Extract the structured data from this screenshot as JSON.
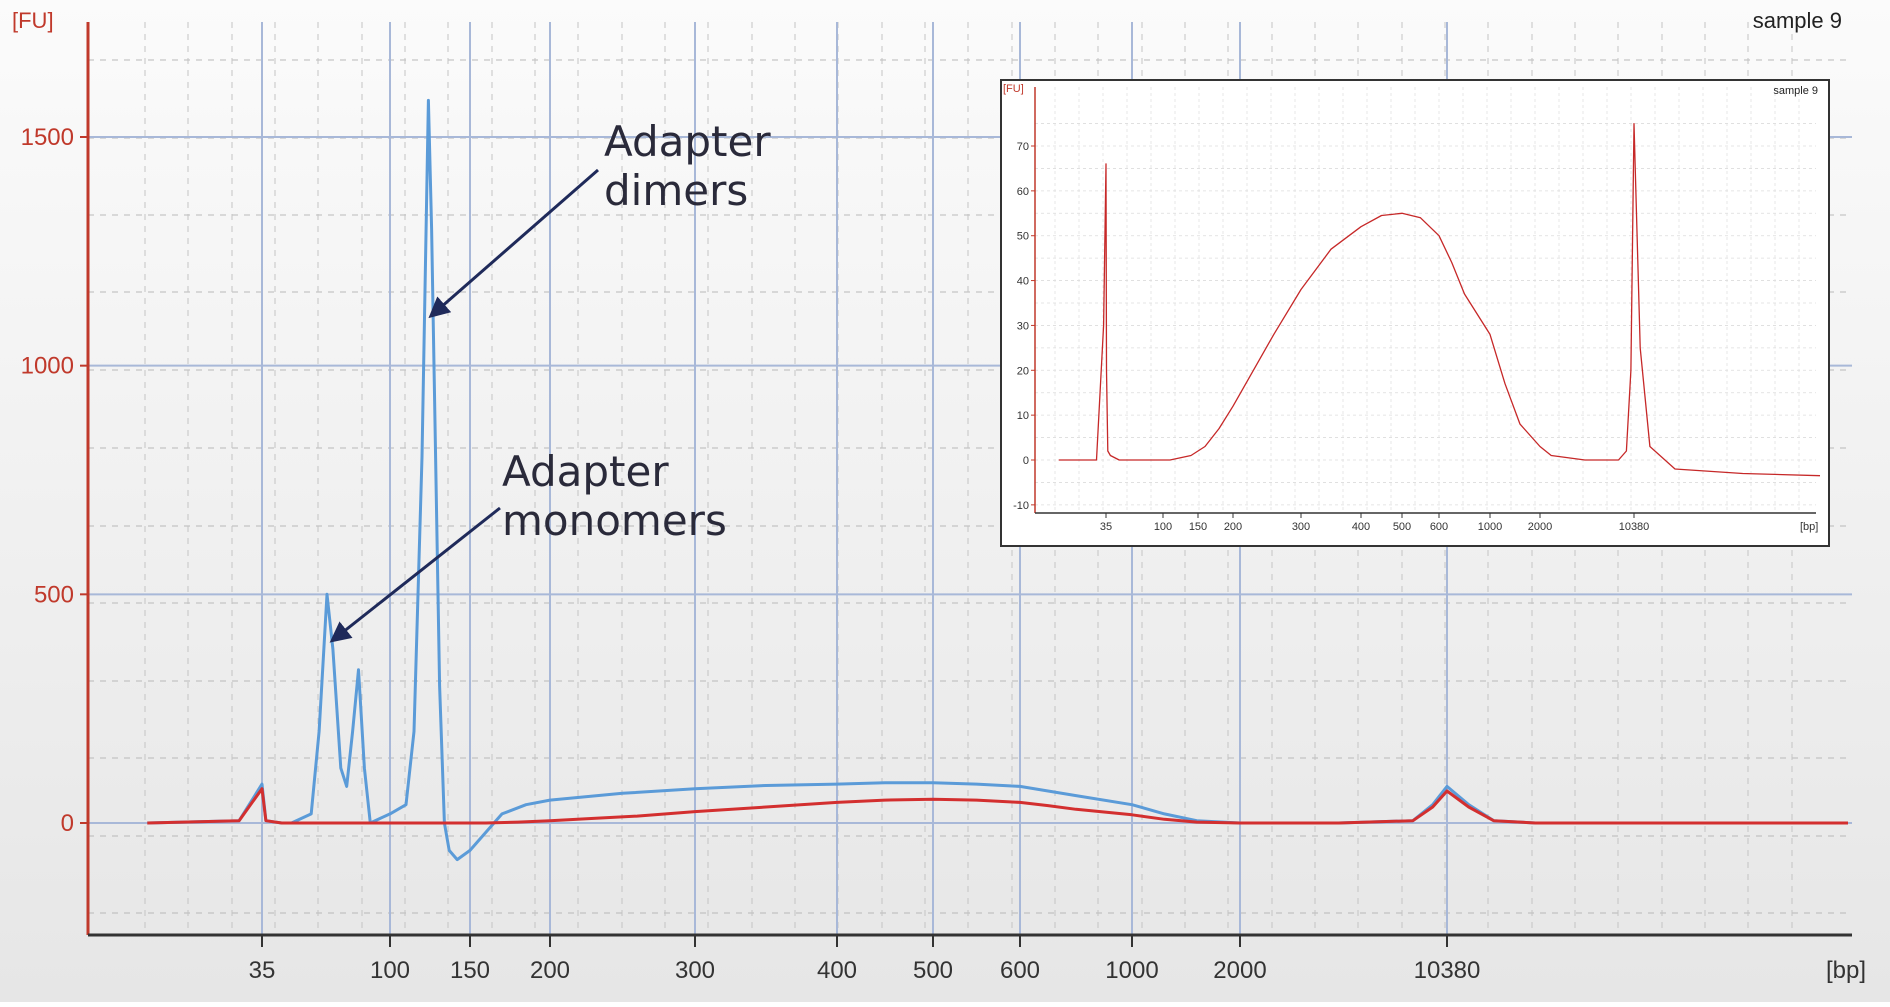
{
  "chart_data": [
    {
      "type": "line",
      "title": "",
      "sample_label": "sample 9",
      "xlabel": "[bp]",
      "ylabel": "[FU]",
      "ylim": [
        -260,
        1680
      ],
      "yticks": [
        0,
        500,
        1000,
        1500
      ],
      "x_tick_labels": [
        {
          "label": "35",
          "x": 35
        },
        {
          "label": "100",
          "x": 100
        },
        {
          "label": "150",
          "x": 150
        },
        {
          "label": "200",
          "x": 200
        },
        {
          "label": "300",
          "x": 300
        },
        {
          "label": "400",
          "x": 400
        },
        {
          "label": "500",
          "x": 500
        },
        {
          "label": "600",
          "x": 600
        },
        {
          "label": "1000",
          "x": 1000
        },
        {
          "label": "2000",
          "x": 2000
        },
        {
          "label": "10380",
          "x": 10380
        }
      ],
      "colors": {
        "blue_trace": "#5b9bd8",
        "red_trace": "#d32f2f",
        "axis_y": "#c0392b"
      },
      "series": [
        {
          "color": "#5b9bd8",
          "points": [
            [
              25,
              0
            ],
            [
              33,
              5
            ],
            [
              35,
              85
            ],
            [
              37,
              5
            ],
            [
              45,
              0
            ],
            [
              50,
              0
            ],
            [
              60,
              20
            ],
            [
              64,
              200
            ],
            [
              68,
              500
            ],
            [
              71,
              380
            ],
            [
              75,
              120
            ],
            [
              78,
              80
            ],
            [
              81,
              200
            ],
            [
              84,
              335
            ],
            [
              87,
              120
            ],
            [
              90,
              0
            ],
            [
              95,
              10
            ],
            [
              100,
              20
            ],
            [
              110,
              40
            ],
            [
              115,
              200
            ],
            [
              120,
              800
            ],
            [
              124,
              1580
            ],
            [
              126,
              1300
            ],
            [
              128,
              900
            ],
            [
              131,
              300
            ],
            [
              134,
              0
            ],
            [
              137,
              -60
            ],
            [
              142,
              -80
            ],
            [
              150,
              -60
            ],
            [
              160,
              -20
            ],
            [
              170,
              20
            ],
            [
              185,
              40
            ],
            [
              200,
              50
            ],
            [
              250,
              65
            ],
            [
              300,
              75
            ],
            [
              350,
              82
            ],
            [
              400,
              85
            ],
            [
              450,
              88
            ],
            [
              500,
              88
            ],
            [
              550,
              85
            ],
            [
              600,
              80
            ],
            [
              700,
              70
            ],
            [
              800,
              60
            ],
            [
              1000,
              40
            ],
            [
              1300,
              20
            ],
            [
              1600,
              5
            ],
            [
              2000,
              0
            ],
            [
              3000,
              0
            ],
            [
              6000,
              0
            ],
            [
              9000,
              5
            ],
            [
              9800,
              40
            ],
            [
              10380,
              80
            ],
            [
              10900,
              40
            ],
            [
              11500,
              5
            ],
            [
              12500,
              0
            ],
            [
              20000,
              0
            ]
          ]
        },
        {
          "color": "#d32f2f",
          "points": [
            [
              25,
              0
            ],
            [
              33,
              5
            ],
            [
              35,
              75
            ],
            [
              37,
              5
            ],
            [
              45,
              0
            ],
            [
              100,
              0
            ],
            [
              140,
              0
            ],
            [
              160,
              0
            ],
            [
              180,
              2
            ],
            [
              200,
              5
            ],
            [
              230,
              10
            ],
            [
              260,
              15
            ],
            [
              300,
              25
            ],
            [
              350,
              35
            ],
            [
              400,
              45
            ],
            [
              450,
              50
            ],
            [
              500,
              52
            ],
            [
              550,
              50
            ],
            [
              600,
              45
            ],
            [
              700,
              38
            ],
            [
              800,
              30
            ],
            [
              1000,
              18
            ],
            [
              1300,
              8
            ],
            [
              1600,
              2
            ],
            [
              2000,
              0
            ],
            [
              6000,
              0
            ],
            [
              9000,
              5
            ],
            [
              9800,
              35
            ],
            [
              10380,
              70
            ],
            [
              10900,
              35
            ],
            [
              11500,
              5
            ],
            [
              12500,
              0
            ],
            [
              20000,
              0
            ]
          ]
        }
      ],
      "annotations": [
        {
          "line1": "Adapter",
          "line2": "dimers",
          "target_x": 126,
          "target_y": 1110
        },
        {
          "line1": "Adapter",
          "line2": "monomers",
          "target_x": 71,
          "target_y": 400
        }
      ]
    },
    {
      "type": "line",
      "title": "",
      "sample_label": "sample 9",
      "xlabel": "[bp]",
      "ylabel": "[FU]",
      "ylim": [
        -12,
        82
      ],
      "yticks": [
        -10,
        0,
        10,
        20,
        30,
        40,
        50,
        60,
        70
      ],
      "x_tick_labels": [
        {
          "label": "35",
          "x": 35
        },
        {
          "label": "100",
          "x": 100
        },
        {
          "label": "150",
          "x": 150
        },
        {
          "label": "200",
          "x": 200
        },
        {
          "label": "300",
          "x": 300
        },
        {
          "label": "400",
          "x": 400
        },
        {
          "label": "500",
          "x": 500
        },
        {
          "label": "600",
          "x": 600
        },
        {
          "label": "1000",
          "x": 1000
        },
        {
          "label": "2000",
          "x": 2000
        },
        {
          "label": "10380",
          "x": 10380
        }
      ],
      "series": [
        {
          "color": "#c62828",
          "points": [
            [
              25,
              0
            ],
            [
              33,
              0
            ],
            [
              34.5,
              30
            ],
            [
              35,
              66
            ],
            [
              35.6,
              20
            ],
            [
              37,
              2
            ],
            [
              40,
              1
            ],
            [
              50,
              0
            ],
            [
              80,
              0
            ],
            [
              110,
              0
            ],
            [
              140,
              1
            ],
            [
              160,
              3
            ],
            [
              180,
              7
            ],
            [
              200,
              12
            ],
            [
              230,
              20
            ],
            [
              260,
              28
            ],
            [
              300,
              38
            ],
            [
              350,
              47
            ],
            [
              400,
              52
            ],
            [
              450,
              54.5
            ],
            [
              500,
              55
            ],
            [
              550,
              54
            ],
            [
              600,
              50
            ],
            [
              700,
              44
            ],
            [
              800,
              37
            ],
            [
              1000,
              28
            ],
            [
              1300,
              17
            ],
            [
              1600,
              8
            ],
            [
              2000,
              3
            ],
            [
              3000,
              1
            ],
            [
              6000,
              0
            ],
            [
              9000,
              0
            ],
            [
              9700,
              2
            ],
            [
              10100,
              20
            ],
            [
              10380,
              75
            ],
            [
              10700,
              25
            ],
            [
              11200,
              3
            ],
            [
              12500,
              -2
            ],
            [
              16000,
              -3
            ],
            [
              20000,
              -3.5
            ]
          ]
        }
      ]
    }
  ]
}
